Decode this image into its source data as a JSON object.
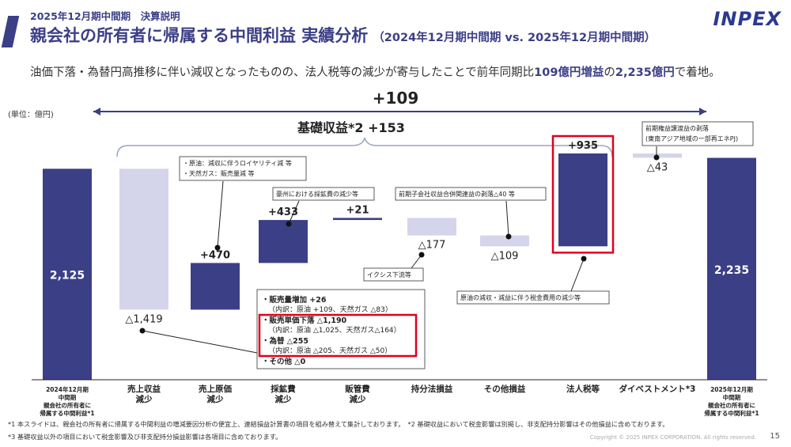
{
  "header": {
    "subtitle": "2025年12月期中間期　決算説明",
    "title": "親会社の所有者に帰属する中間利益 実績分析",
    "title_paren": "（2024年12月期中間期 vs. 2025年12月期中間期）",
    "logo": "INPEX"
  },
  "summary": {
    "part1": "油価下落・為替円高推移に伴い減収となったものの、法人税等の減少が寄与したことで前年同期比",
    "hl1": "109億円増益",
    "part2": "の",
    "hl2": "2,235億円",
    "part3": "で着地。"
  },
  "unit": "(単位：億円)",
  "colors": {
    "navy": "#3b3f86",
    "light": "#d4d5ea",
    "red": "#e0001b"
  },
  "chart_data": {
    "type": "bar",
    "subtype": "waterfall",
    "categories": [
      {
        "lines": [
          "2024年12月期",
          "中間期",
          "親会社の所有者に",
          "帰属する中間利益*1"
        ]
      },
      {
        "lines": [
          "売上収益",
          "減少"
        ]
      },
      {
        "lines": [
          "売上原価",
          "減少"
        ]
      },
      {
        "lines": [
          "採鉱費",
          "減少"
        ]
      },
      {
        "lines": [
          "販管費",
          "減少"
        ]
      },
      {
        "lines": [
          "持分法損益"
        ]
      },
      {
        "lines": [
          "その他損益"
        ]
      },
      {
        "lines": [
          "法人税等"
        ]
      },
      {
        "lines": [
          "ダイベストメント*3"
        ]
      },
      {
        "lines": [
          "2025年12月期",
          "中間期",
          "親会社の所有者に",
          "帰属する中間利益*1"
        ]
      }
    ],
    "values": [
      2125,
      -1419,
      470,
      433,
      21,
      -177,
      -109,
      935,
      -43,
      2235
    ],
    "value_labels": [
      "2,125",
      "△1,419",
      "+470",
      "+433",
      "+21",
      "△177",
      "△109",
      "+935",
      "△43",
      "2,235"
    ],
    "kinds": [
      "total",
      "decrease",
      "increase",
      "increase",
      "increase",
      "decrease",
      "decrease",
      "increase",
      "decrease",
      "total"
    ],
    "total_diff_label": "+109",
    "bracket_label": "基礎収益*2 +153",
    "highlighted_category": "法人税等",
    "callouts": [
      {
        "lines": [
          "・原油：減収に伴うロイヤリティ減 等",
          "・天然ガス：販売量減 等"
        ]
      },
      {
        "lines": [
          "豪州における採鉱費の減少等"
        ]
      },
      {
        "lines": [
          "前期子会社収益合併関連益の剥落△40 等"
        ]
      },
      {
        "lines": [
          "前期権益譲渡益の剥落",
          "(東南アジア地域の一部再エネPJ)"
        ]
      },
      {
        "lines": [
          "イクシス下流等"
        ]
      },
      {
        "lines": [
          "原油の減収・減益に伴う税金費用の減少等"
        ]
      }
    ],
    "breakdown": [
      {
        "title": "・販売量増加 +26",
        "detail": "（内訳：原油 +109、天然ガス △83）"
      },
      {
        "title": "・販売単価下落 △1,190",
        "detail": "（内訳：原油 △1,025、天然ガス△164）"
      },
      {
        "title": "・為替 △255",
        "detail": "（内訳：原油 △205、天然ガス △50）"
      },
      {
        "title": "・その他 △0",
        "detail": ""
      }
    ]
  },
  "footnotes": [
    "*1 本スライドは、親会社の所有者に帰属する中間利益の増減要因分析の便宜上、連結損益計算書の項目を組み替えて集計しております。　*2 基礎収益において税金影響は別掲し、非支配持分影響はその他損益に含めております。",
    "*3 基礎収益以外の項目において税金影響及び非支配持分損益影響は各項目に含めております。"
  ],
  "copyright": "Copyright © 2025 INPEX CORPORATION. All rights reserved.",
  "page_number": "15"
}
